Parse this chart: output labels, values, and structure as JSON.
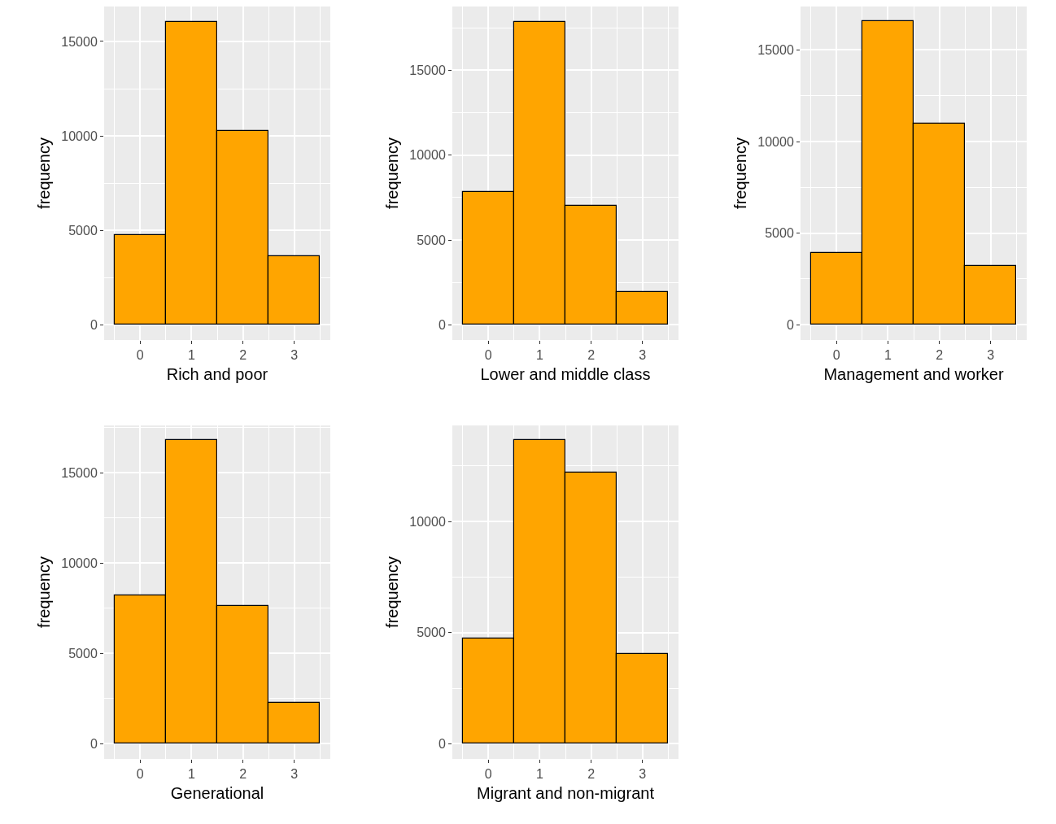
{
  "chart_data": [
    {
      "type": "histogram",
      "xlabel": "Rich and poor",
      "ylabel": "frequency",
      "bins": [
        -0.5,
        0.5,
        1.5,
        2.5,
        3.5
      ],
      "values": [
        4750,
        16050,
        10250,
        3650
      ],
      "color": "#ffa500",
      "xlim": [
        -0.7,
        3.7
      ],
      "xticks": [
        0,
        1,
        2,
        3
      ],
      "ylim": [
        -800,
        16850
      ],
      "yticks": [
        0,
        5000,
        10000,
        15000
      ],
      "grid": true
    },
    {
      "type": "histogram",
      "xlabel": "Lower and middle class",
      "ylabel": "frequency",
      "bins": [
        -0.5,
        0.5,
        1.5,
        2.5,
        3.5
      ],
      "values": [
        7850,
        17850,
        7000,
        1950
      ],
      "color": "#ffa500",
      "xlim": [
        -0.7,
        3.7
      ],
      "xticks": [
        0,
        1,
        2,
        3
      ],
      "ylim": [
        -890,
        18750
      ],
      "yticks": [
        0,
        5000,
        10000,
        15000
      ],
      "grid": true
    },
    {
      "type": "histogram",
      "xlabel": "Management and worker",
      "ylabel": "frequency",
      "bins": [
        -0.5,
        0.5,
        1.5,
        2.5,
        3.5
      ],
      "values": [
        3900,
        16550,
        11000,
        3200
      ],
      "color": "#ffa500",
      "xlim": [
        -0.7,
        3.7
      ],
      "xticks": [
        0,
        1,
        2,
        3
      ],
      "ylim": [
        -830,
        17370
      ],
      "yticks": [
        0,
        5000,
        10000,
        15000
      ],
      "grid": true
    },
    {
      "type": "histogram",
      "xlabel": "Generational",
      "ylabel": "frequency",
      "bins": [
        -0.5,
        0.5,
        1.5,
        2.5,
        3.5
      ],
      "values": [
        8200,
        16800,
        7650,
        2250
      ],
      "color": "#ffa500",
      "xlim": [
        -0.7,
        3.7
      ],
      "xticks": [
        0,
        1,
        2,
        3
      ],
      "ylim": [
        -840,
        17630
      ],
      "yticks": [
        0,
        5000,
        10000,
        15000
      ],
      "grid": true
    },
    {
      "type": "histogram",
      "xlabel": "Migrant and non-migrant",
      "ylabel": "frequency",
      "bins": [
        -0.5,
        0.5,
        1.5,
        2.5,
        3.5
      ],
      "values": [
        4750,
        13650,
        12200,
        4050
      ],
      "color": "#ffa500",
      "xlim": [
        -0.7,
        3.7
      ],
      "xticks": [
        0,
        1,
        2,
        3
      ],
      "ylim": [
        -680,
        14320
      ],
      "yticks": [
        0,
        5000,
        10000
      ],
      "grid": true
    }
  ]
}
